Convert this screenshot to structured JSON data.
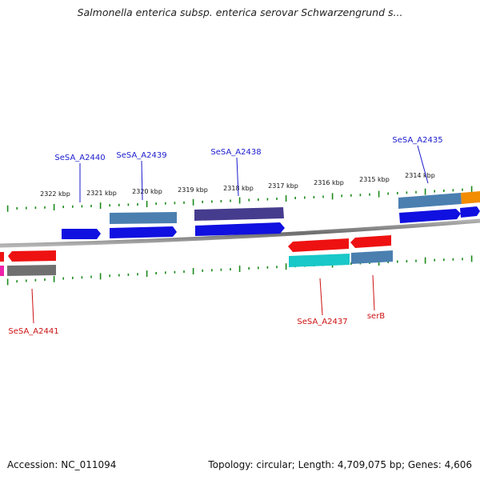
{
  "title": "Salmonella enterica subsp. enterica serovar Schwarzengrund s...",
  "footer": {
    "accession": "Accession: NC_011094",
    "topology": "Topology: circular; Length: 4,709,075 bp; Genes: 4,606"
  },
  "colors": {
    "backbone": "#808080",
    "ticks": "#1a8a1a",
    "label_forward": "#1a1acc",
    "label_reverse": "#cc1111"
  },
  "ruler": [
    {
      "label": "2322 kbp"
    },
    {
      "label": "2321 kbp"
    },
    {
      "label": "2320 kbp"
    },
    {
      "label": "2319 kbp"
    },
    {
      "label": "2318 kbp"
    },
    {
      "label": "2317 kbp"
    },
    {
      "label": "2316 kbp"
    },
    {
      "label": "2315 kbp"
    },
    {
      "label": "2314 kbp"
    }
  ],
  "gene_labels": [
    {
      "name": "SeSA_A2440",
      "strand": "forward"
    },
    {
      "name": "SeSA_A2439",
      "strand": "forward"
    },
    {
      "name": "SeSA_A2438",
      "strand": "forward"
    },
    {
      "name": "SeSA_A2435",
      "strand": "forward"
    },
    {
      "name": "SeSA_A2441",
      "strand": "reverse"
    },
    {
      "name": "SeSA_A2437",
      "strand": "reverse"
    },
    {
      "name": "serB",
      "strand": "reverse"
    }
  ]
}
